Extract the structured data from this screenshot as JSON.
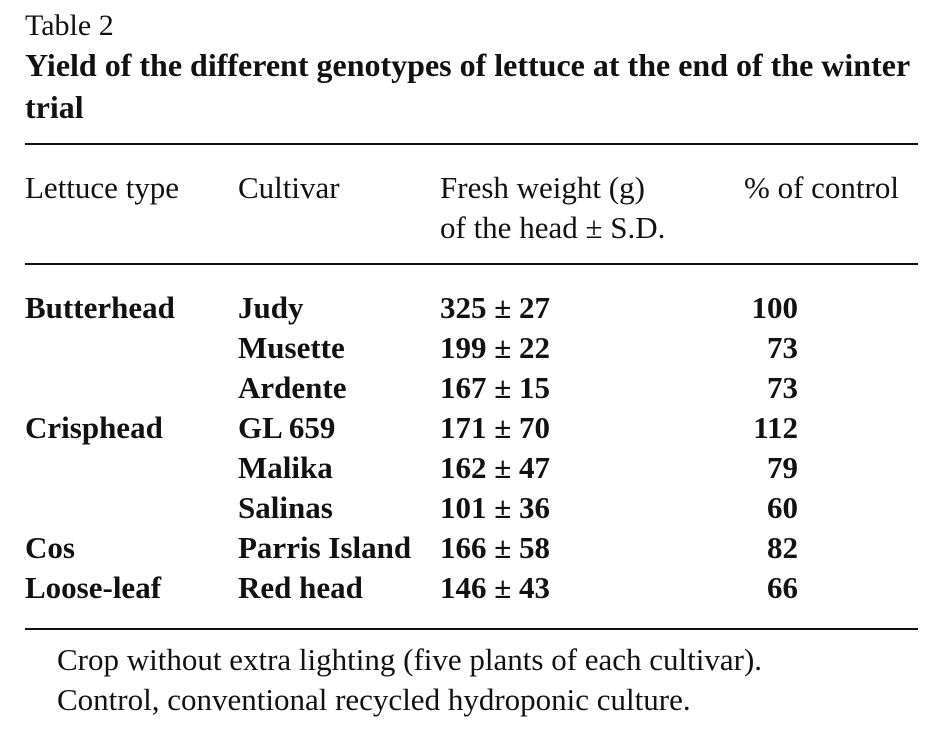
{
  "table_label": "Table 2",
  "caption": "Yield of the different genotypes of lettuce at the end of the winter trial",
  "headers": {
    "type": "Lettuce type",
    "cultivar": "Cultivar",
    "fresh_weight_line1": "Fresh weight (g)",
    "fresh_weight_line2": "of the head ± S.D.",
    "pct": "% of control"
  },
  "rows": [
    {
      "type": "Butterhead",
      "cultivar": "Judy",
      "fresh_weight": "325 ± 27",
      "pct": "100"
    },
    {
      "type": "",
      "cultivar": "Musette",
      "fresh_weight": "199 ± 22",
      "pct": "73"
    },
    {
      "type": "",
      "cultivar": "Ardente",
      "fresh_weight": "167 ± 15",
      "pct": "73"
    },
    {
      "type": "Crisphead",
      "cultivar": "GL 659",
      "fresh_weight": "171 ± 70",
      "pct": "112"
    },
    {
      "type": "",
      "cultivar": "Malika",
      "fresh_weight": "162 ± 47",
      "pct": "79"
    },
    {
      "type": "",
      "cultivar": "Salinas",
      "fresh_weight": "101 ± 36",
      "pct": "60"
    },
    {
      "type": "Cos",
      "cultivar": "Parris Island",
      "fresh_weight": "166 ± 58",
      "pct": "82"
    },
    {
      "type": "Loose-leaf",
      "cultivar": "Red head",
      "fresh_weight": "146 ± 43",
      "pct": "66"
    }
  ],
  "footnotes": [
    "Crop without extra lighting (five plants of each cultivar).",
    "Control, conventional recycled hydroponic culture."
  ]
}
